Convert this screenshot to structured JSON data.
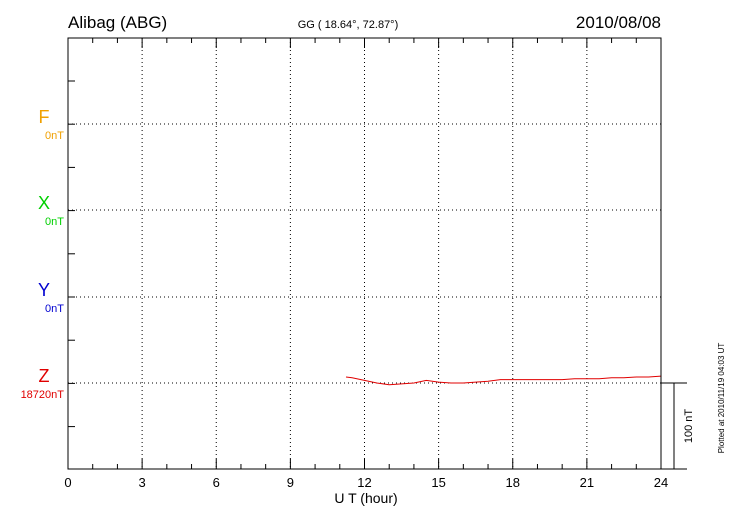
{
  "header": {
    "station": "Alibag (ABG)",
    "coords": "GG ( 18.64°,  72.87°)",
    "date": "2010/08/08"
  },
  "footer": {
    "plotted": "Plotted at 2010/11/19 04:03 UT"
  },
  "scale": {
    "label": "100 nT"
  },
  "chart_data": {
    "type": "line",
    "xlabel": "U T (hour)",
    "xlim": [
      0,
      24
    ],
    "x_ticks": [
      0,
      3,
      6,
      9,
      12,
      15,
      18,
      21,
      24
    ],
    "grid": true,
    "components": [
      {
        "name": "F",
        "baseline": "0nT",
        "color": "#f0a000"
      },
      {
        "name": "X",
        "baseline": "0nT",
        "color": "#00d000"
      },
      {
        "name": "Y",
        "baseline": "0nT",
        "color": "#0000d0"
      },
      {
        "name": "Z",
        "baseline": "18720nT",
        "color": "#e00000"
      }
    ],
    "series": [
      {
        "name": "Z",
        "color": "#e00000",
        "x": [
          11.25,
          11.5,
          12.0,
          12.5,
          13.0,
          13.5,
          14.0,
          14.5,
          15.0,
          15.5,
          16.0,
          16.5,
          17.0,
          17.5,
          18.0,
          18.5,
          19.0,
          19.5,
          20.0,
          20.5,
          21.0,
          21.5,
          22.0,
          22.5,
          23.0,
          23.5,
          24.0
        ],
        "y": [
          7,
          6,
          3,
          0,
          -2,
          -1,
          0,
          3,
          1,
          0,
          0,
          1,
          2,
          4,
          4,
          4,
          4,
          4,
          4,
          5,
          5,
          5,
          6,
          6,
          7,
          7,
          8
        ]
      }
    ]
  }
}
